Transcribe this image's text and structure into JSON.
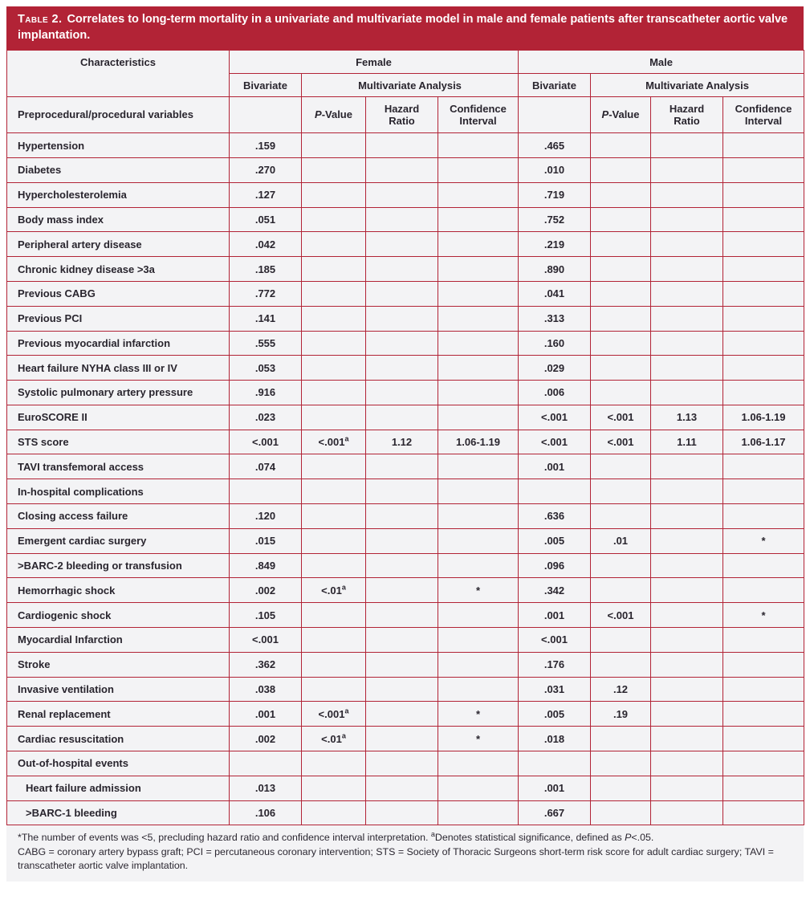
{
  "colors": {
    "accent_red": "#b22336",
    "cell_background": "#f3f3f5",
    "text": "#29252e",
    "banner_text": "#ffffff"
  },
  "title": {
    "label": "Table 2.",
    "text": "Correlates to long-term mortality in a univariate and multivariate model in male and female patients after transcatheter aortic valve implantation."
  },
  "header": {
    "characteristics": "Characteristics",
    "female": "Female",
    "male": "Male",
    "bivariate": "Bivariate",
    "multivariate": "Multivariate Analysis",
    "preproc": "Preprocedural/procedural variables",
    "pvalue": {
      "p": "P",
      "rest": "-Value"
    },
    "hazard": "Hazard\nRatio",
    "ci": "Confidence\nInterval"
  },
  "rows": [
    {
      "label": "Hypertension",
      "type": "item",
      "f": [
        ".159",
        "",
        "",
        ""
      ],
      "m": [
        ".465",
        "",
        "",
        ""
      ]
    },
    {
      "label": "Diabetes",
      "type": "item",
      "f": [
        ".270",
        "",
        "",
        ""
      ],
      "m": [
        ".010",
        "",
        "",
        ""
      ]
    },
    {
      "label": "Hypercholesterolemia",
      "type": "item",
      "f": [
        ".127",
        "",
        "",
        ""
      ],
      "m": [
        ".719",
        "",
        "",
        ""
      ]
    },
    {
      "label": "Body mass index",
      "type": "item",
      "f": [
        ".051",
        "",
        "",
        ""
      ],
      "m": [
        ".752",
        "",
        "",
        ""
      ]
    },
    {
      "label": "Peripheral artery disease",
      "type": "item",
      "f": [
        ".042",
        "",
        "",
        ""
      ],
      "m": [
        ".219",
        "",
        "",
        ""
      ]
    },
    {
      "label": "Chronic kidney disease >3a",
      "type": "item",
      "f": [
        ".185",
        "",
        "",
        ""
      ],
      "m": [
        ".890",
        "",
        "",
        ""
      ]
    },
    {
      "label": "Previous CABG",
      "type": "item",
      "f": [
        ".772",
        "",
        "",
        ""
      ],
      "m": [
        ".041",
        "",
        "",
        ""
      ]
    },
    {
      "label": "Previous PCI",
      "type": "item",
      "f": [
        ".141",
        "",
        "",
        ""
      ],
      "m": [
        ".313",
        "",
        "",
        ""
      ]
    },
    {
      "label": "Previous myocardial infarction",
      "type": "item",
      "f": [
        ".555",
        "",
        "",
        ""
      ],
      "m": [
        ".160",
        "",
        "",
        ""
      ]
    },
    {
      "label": "Heart failure NYHA class III or IV",
      "type": "item",
      "f": [
        ".053",
        "",
        "",
        ""
      ],
      "m": [
        ".029",
        "",
        "",
        ""
      ]
    },
    {
      "label": "Systolic pulmonary artery pressure",
      "type": "item",
      "f": [
        ".916",
        "",
        "",
        ""
      ],
      "m": [
        ".006",
        "",
        "",
        ""
      ]
    },
    {
      "label": "EuroSCORE II",
      "type": "item",
      "f": [
        ".023",
        "",
        "",
        ""
      ],
      "m": [
        "<.001",
        "<.001",
        "1.13",
        "1.06-1.19"
      ]
    },
    {
      "label": "STS score",
      "type": "item",
      "f": [
        "<.001",
        "<.001^a",
        "1.12",
        "1.06-1.19"
      ],
      "m": [
        "<.001",
        "<.001",
        "1.11",
        "1.06-1.17"
      ]
    },
    {
      "label": "TAVI transfemoral access",
      "type": "item",
      "f": [
        ".074",
        "",
        "",
        ""
      ],
      "m": [
        ".001",
        "",
        "",
        ""
      ]
    },
    {
      "label": "In-hospital complications",
      "type": "section",
      "f": [
        "",
        "",
        "",
        ""
      ],
      "m": [
        "",
        "",
        "",
        ""
      ]
    },
    {
      "label": "Closing access failure",
      "type": "item",
      "f": [
        ".120",
        "",
        "",
        ""
      ],
      "m": [
        ".636",
        "",
        "",
        ""
      ]
    },
    {
      "label": "Emergent cardiac surgery",
      "type": "item",
      "f": [
        ".015",
        "",
        "",
        ""
      ],
      "m": [
        ".005",
        ".01",
        "",
        "*"
      ]
    },
    {
      "label": ">BARC-2 bleeding or transfusion",
      "type": "item",
      "f": [
        ".849",
        "",
        "",
        ""
      ],
      "m": [
        ".096",
        "",
        "",
        ""
      ]
    },
    {
      "label": "Hemorrhagic shock",
      "type": "item",
      "f": [
        ".002",
        "<.01^a",
        "",
        "*"
      ],
      "m": [
        ".342",
        "",
        "",
        ""
      ]
    },
    {
      "label": "Cardiogenic shock",
      "type": "item",
      "f": [
        ".105",
        "",
        "",
        ""
      ],
      "m": [
        ".001",
        "<.001",
        "",
        "*"
      ]
    },
    {
      "label": "Myocardial Infarction",
      "type": "item",
      "f": [
        "<.001",
        "",
        "",
        ""
      ],
      "m": [
        "<.001",
        "",
        "",
        ""
      ]
    },
    {
      "label": "Stroke",
      "type": "item",
      "f": [
        ".362",
        "",
        "",
        ""
      ],
      "m": [
        ".176",
        "",
        "",
        ""
      ]
    },
    {
      "label": "Invasive ventilation",
      "type": "item",
      "f": [
        ".038",
        "",
        "",
        ""
      ],
      "m": [
        ".031",
        ".12",
        "",
        ""
      ]
    },
    {
      "label": "Renal replacement",
      "type": "item",
      "f": [
        ".001",
        "<.001^a",
        "",
        "*"
      ],
      "m": [
        ".005",
        ".19",
        "",
        ""
      ]
    },
    {
      "label": "Cardiac resuscitation",
      "type": "item",
      "f": [
        ".002",
        "<.01^a",
        "",
        "*"
      ],
      "m": [
        ".018",
        "",
        "",
        ""
      ]
    },
    {
      "label": "Out-of-hospital events",
      "type": "section",
      "f": [
        "",
        "",
        "",
        ""
      ],
      "m": [
        "",
        "",
        "",
        ""
      ]
    },
    {
      "label": "Heart failure admission",
      "type": "subitem",
      "f": [
        ".013",
        "",
        "",
        ""
      ],
      "m": [
        ".001",
        "",
        "",
        ""
      ]
    },
    {
      "label": ">BARC-1 bleeding",
      "type": "subitem",
      "f": [
        ".106",
        "",
        "",
        ""
      ],
      "m": [
        ".667",
        "",
        "",
        ""
      ]
    }
  ],
  "footnotes": {
    "line1_a": "*The number of events was <5, precluding hazard ratio and confidence interval interpretation. ",
    "line1_sup": "a",
    "line1_b": "Denotes statistical significance, defined as ",
    "line1_p": "P",
    "line1_c": "<.05.",
    "line2": "CABG = coronary artery bypass graft; PCI = percutaneous coronary intervention; STS = Society of Thoracic Surgeons short-term risk score for adult cardiac surgery; TAVI = transcatheter aortic valve implantation."
  }
}
